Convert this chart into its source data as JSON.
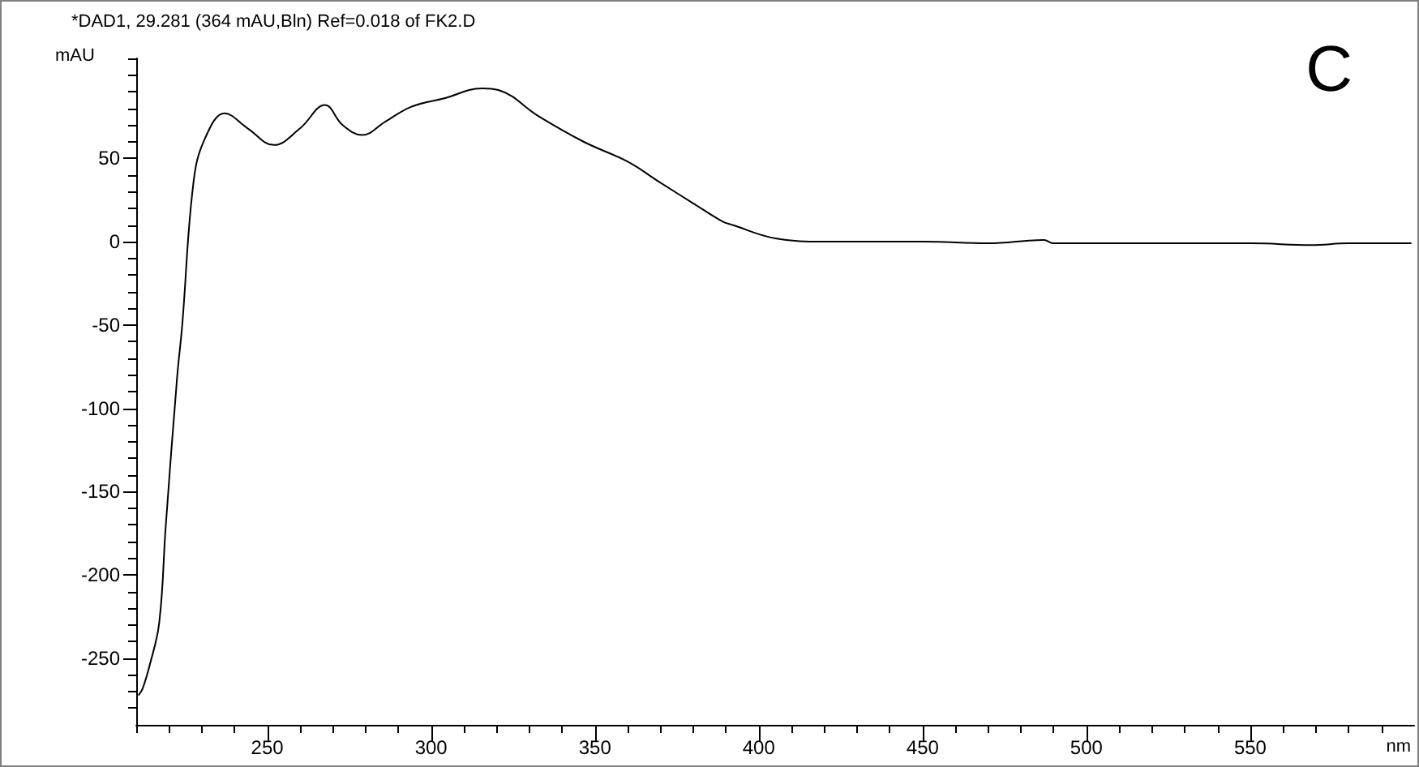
{
  "chart_data": {
    "type": "line",
    "title": "*DAD1, 29.281 (364 mAU,Bln) Ref=0.018 of FK2.D",
    "xlabel": "nm",
    "ylabel": "mAU",
    "annotations": [
      "C"
    ],
    "series": [
      {
        "color": "#000000",
        "x": [
          210.8,
          212,
          214,
          217,
          219,
          222.5,
          224,
          227.5,
          231,
          237,
          244,
          252,
          260,
          267.6,
          273,
          279,
          286,
          294,
          304,
          315.5,
          320.5,
          333,
          346.5,
          360,
          369.5,
          380,
          389,
          392,
          405,
          420,
          450,
          470,
          487,
          490,
          520,
          550,
          568.6,
          580,
          599
        ],
        "values": [
          -272,
          -268,
          -255,
          -229,
          -171,
          -81,
          -51,
          36,
          62,
          77,
          68,
          58,
          68,
          82,
          70,
          64,
          72,
          81,
          86,
          92,
          91,
          75,
          60,
          48,
          36,
          23,
          12,
          10,
          2,
          0,
          0,
          -1,
          1,
          -1,
          -1,
          -1,
          -2,
          -1,
          -1
        ]
      }
    ],
    "xlim": [
      210,
      600
    ],
    "ylim": [
      -290,
      110
    ],
    "xticks": [
      {
        "value": 210,
        "label": null
      },
      {
        "value": 220,
        "label": null
      },
      {
        "value": 230,
        "label": null
      },
      {
        "value": 240,
        "label": null
      },
      250,
      {
        "value": 260,
        "label": null
      },
      {
        "value": 270,
        "label": null
      },
      {
        "value": 280,
        "label": null
      },
      {
        "value": 290,
        "label": null
      },
      300,
      {
        "value": 310,
        "label": null
      },
      {
        "value": 320,
        "label": null
      },
      {
        "value": 330,
        "label": null
      },
      {
        "value": 340,
        "label": null
      },
      350,
      {
        "value": 360,
        "label": null
      },
      {
        "value": 370,
        "label": null
      },
      {
        "value": 380,
        "label": null
      },
      {
        "value": 390,
        "label": null
      },
      400,
      {
        "value": 410,
        "label": null
      },
      {
        "value": 420,
        "label": null
      },
      {
        "value": 430,
        "label": null
      },
      {
        "value": 440,
        "label": null
      },
      450,
      {
        "value": 460,
        "label": null
      },
      {
        "value": 470,
        "label": null
      },
      {
        "value": 480,
        "label": null
      },
      {
        "value": 490,
        "label": null
      },
      500,
      {
        "value": 510,
        "label": null
      },
      {
        "value": 520,
        "label": null
      },
      {
        "value": 530,
        "label": null
      },
      {
        "value": 540,
        "label": null
      },
      550,
      {
        "value": 560,
        "label": null
      },
      {
        "value": 570,
        "label": null
      },
      {
        "value": 580,
        "label": null
      },
      {
        "value": 590,
        "label": null
      }
    ],
    "yticks": [
      {
        "value": -280,
        "label": null
      },
      {
        "value": -270,
        "label": null
      },
      {
        "value": -260,
        "label": null
      },
      -250,
      {
        "value": -240,
        "label": null
      },
      {
        "value": -230,
        "label": null
      },
      {
        "value": -220,
        "label": null
      },
      {
        "value": -210,
        "label": null
      },
      -200,
      {
        "value": -190,
        "label": null
      },
      {
        "value": -180,
        "label": null
      },
      {
        "value": -170,
        "label": null
      },
      {
        "value": -160,
        "label": null
      },
      -150,
      {
        "value": -140,
        "label": null
      },
      {
        "value": -130,
        "label": null
      },
      {
        "value": -120,
        "label": null
      },
      {
        "value": -110,
        "label": null
      },
      -100,
      {
        "value": -90,
        "label": null
      },
      {
        "value": -80,
        "label": null
      },
      {
        "value": -70,
        "label": null
      },
      {
        "value": -60,
        "label": null
      },
      -50,
      {
        "value": -40,
        "label": null
      },
      {
        "value": -30,
        "label": null
      },
      {
        "value": -20,
        "label": null
      },
      {
        "value": -10,
        "label": null
      },
      0,
      {
        "value": 10,
        "label": null
      },
      {
        "value": 20,
        "label": null
      },
      {
        "value": 30,
        "label": null
      },
      {
        "value": 40,
        "label": null
      },
      50,
      {
        "value": 60,
        "label": null
      },
      {
        "value": 70,
        "label": null
      },
      {
        "value": 80,
        "label": null
      },
      {
        "value": 90,
        "label": null
      },
      {
        "value": 100,
        "label": null
      },
      {
        "value": 110,
        "label": null
      }
    ],
    "grid": false,
    "marker": "none",
    "line_style": "solid"
  }
}
